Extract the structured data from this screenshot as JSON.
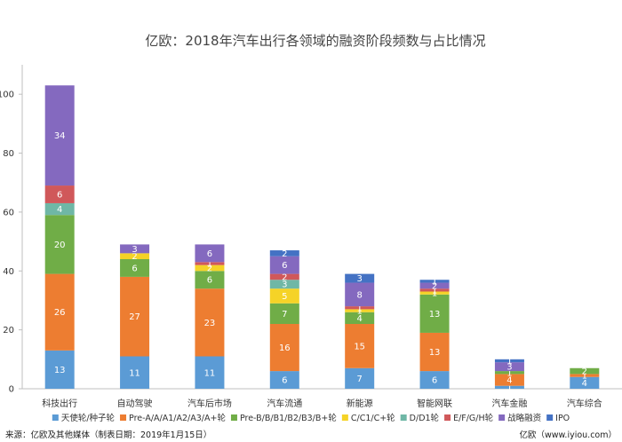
{
  "chart_data": {
    "type": "bar",
    "stacked": true,
    "title": "亿欧：2018年汽车出行各领域的融资阶段频数与占比情况",
    "ylim": [
      0,
      110
    ],
    "yticks": [
      0,
      20,
      40,
      60,
      80,
      100
    ],
    "categories": [
      "科技出行",
      "自动驾驶",
      "汽车后市场",
      "汽车流通",
      "新能源",
      "智能网联",
      "汽车金融",
      "汽车综合"
    ],
    "series": [
      {
        "name": "天使轮/种子轮",
        "color": "#5B9BD5",
        "values": [
          13,
          11,
          11,
          6,
          7,
          6,
          1,
          4
        ]
      },
      {
        "name": "Pre-A/A/A1/A2/A3/A+轮",
        "color": "#ED7D31",
        "values": [
          26,
          27,
          23,
          16,
          15,
          13,
          4,
          1
        ]
      },
      {
        "name": "Pre-B/B/B1/B2/B3/B+轮",
        "color": "#70AD47",
        "values": [
          20,
          6,
          6,
          7,
          4,
          13,
          1,
          2
        ]
      },
      {
        "name": "C/C1/C+轮",
        "color": "#F5D327",
        "values": [
          0,
          2,
          2,
          5,
          1,
          1,
          0,
          0
        ]
      },
      {
        "name": "D/D1轮",
        "color": "#6FB7A6",
        "values": [
          4,
          0,
          0,
          3,
          0,
          0,
          0,
          0
        ]
      },
      {
        "name": "E/F/G/H轮",
        "color": "#D0585A",
        "values": [
          6,
          0,
          1,
          2,
          1,
          1,
          0,
          0
        ]
      },
      {
        "name": "战略融资",
        "color": "#8469BF",
        "values": [
          34,
          3,
          6,
          6,
          8,
          2,
          3,
          0
        ]
      },
      {
        "name": "IPO",
        "color": "#4472C4",
        "values": [
          0,
          0,
          0,
          2,
          3,
          1,
          1,
          0
        ]
      }
    ]
  },
  "footer": {
    "source": "来源：亿欧及其他媒体（制表日期：2019年1月15日）",
    "brand": "亿欧（www.iyiou.com）"
  }
}
